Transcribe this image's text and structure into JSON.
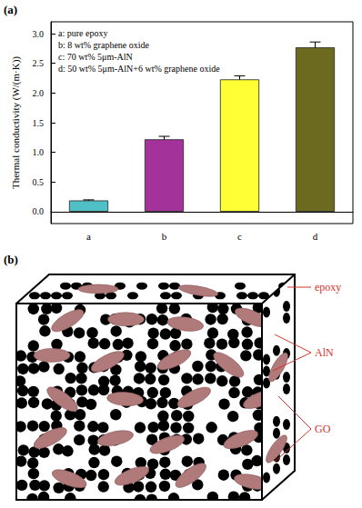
{
  "chart_data": {
    "type": "bar",
    "panel": "(a)",
    "y_label": "Thermal conductivity (W/(m·K))",
    "categories": [
      "a",
      "b",
      "c",
      "d"
    ],
    "values": [
      0.19,
      1.22,
      2.23,
      2.77
    ],
    "errors": [
      0.01,
      0.05,
      0.06,
      0.09
    ],
    "colors": [
      "#4fc1c6",
      "#a3339b",
      "#ffff33",
      "#6b6a1f"
    ],
    "annotations": [
      "a: pure epoxy",
      "b: 8 wt% graphene oxide",
      "c: 70 wt% 5μm-AlN",
      "d: 50 wt% 5μm-AlN+6 wt% graphene oxide"
    ],
    "ylim": [
      -0.2,
      3.2
    ],
    "yticks": [
      {
        "value": 0,
        "label": "0.0"
      },
      {
        "value": 0.5,
        "label": "0.5"
      },
      {
        "value": 1,
        "label": "1.0"
      },
      {
        "value": 1.5,
        "label": "1.5"
      },
      {
        "value": 2,
        "label": "2.0"
      },
      {
        "value": 2.5,
        "label": "2.5"
      },
      {
        "value": 3,
        "label": "3.0"
      }
    ],
    "grid": false
  },
  "diagram": {
    "panel": "(b)",
    "labels": {
      "matrix": "epoxy",
      "particles": "AlN",
      "sheets": "GO"
    }
  }
}
